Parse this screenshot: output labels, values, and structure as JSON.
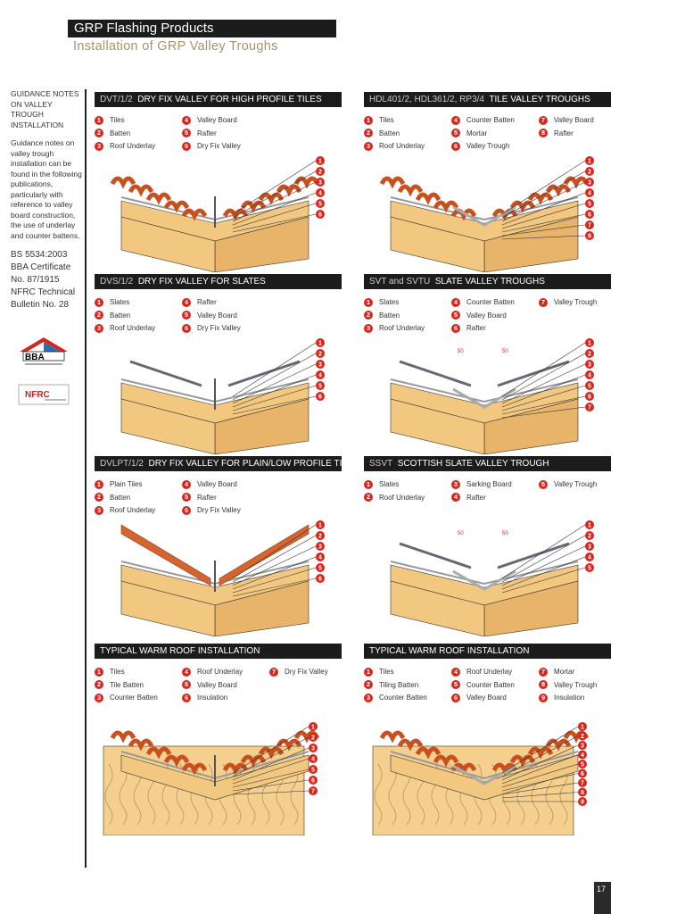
{
  "header": {
    "title": "GRP Flashing Products",
    "subtitle": "Installation of GRP Valley Troughs"
  },
  "sidebar": {
    "heading": "GUIDANCE NOTES ON VALLEY TROUGH INSTALLATION",
    "body": "Guidance notes on valley trough installation can be found in the following publications, particularly with reference to valley board construction, the use of underlay and counter battens.",
    "refs": [
      "BS 5534:2003",
      "BBA Certificate",
      "No. 87/1915",
      "NFRC Technical",
      "Bulletin No. 28"
    ],
    "logos": {
      "bba": "BBA",
      "nfrc": "NFRC"
    }
  },
  "panels": [
    {
      "code": "DVT/1/2",
      "title": "DRY FIX VALLEY FOR HIGH PROFILE TILES",
      "style": "tile",
      "items": [
        "Tiles",
        "Batten",
        "Roof Underlay",
        "Valley Board",
        "Rafter",
        "Dry Fix Valley"
      ]
    },
    {
      "code": "HDL401/2, HDL361/2, RP3/4",
      "title": "TILE VALLEY TROUGHS",
      "style": "trough",
      "items": [
        "Tiles",
        "Batten",
        "Roof Underlay",
        "Counter Batten",
        "Mortar",
        "Valley Trough",
        "Valley Board",
        "Rafter"
      ]
    },
    {
      "code": "DVS/1/2",
      "title": "DRY FIX VALLEY FOR SLATES",
      "style": "slate",
      "items": [
        "Slates",
        "Batten",
        "Roof Underlay",
        "Rafter",
        "Valley Board",
        "Dry Fix Valley"
      ]
    },
    {
      "code": "SVT and SVTU",
      "title": "SLATE VALLEY TROUGHS",
      "style": "slatetrough",
      "dim": "50",
      "items": [
        "Slates",
        "Batten",
        "Roof Underlay",
        "Counter Batten",
        "Valley Board",
        "Rafter",
        "Valley Trough"
      ]
    },
    {
      "code": "DVLPT/1/2",
      "title": "DRY FIX VALLEY FOR PLAIN/LOW PROFILE TILES",
      "style": "plain",
      "items": [
        "Plain Tiles",
        "Batten",
        "Roof Underlay",
        "Valley Board",
        "Rafter",
        "Dry Fix Valley"
      ]
    },
    {
      "code": "SSVT",
      "title": "SCOTTISH SLATE VALLEY TROUGH",
      "style": "slatetrough",
      "dim": "50",
      "items": [
        "Slates",
        "Roof Underlay",
        "Sarking Board",
        "Rafter",
        "Valley Trough"
      ]
    },
    {
      "code": "",
      "title": "TYPICAL WARM ROOF INSTALLATION",
      "style": "warm",
      "items": [
        "Tiles",
        "Tile Batten",
        "Counter Batten",
        "Roof Underlay",
        "Valley Board",
        "Insulation",
        "Dry Fix Valley"
      ]
    },
    {
      "code": "",
      "title": "TYPICAL WARM ROOF INSTALLATION",
      "style": "warmtrough",
      "items": [
        "Tiles",
        "Tiling Batten",
        "Counter Batten",
        "Roof Underlay",
        "Counter Batten",
        "Valley Board",
        "Mortar",
        "Valley Trough",
        "Insulation"
      ]
    }
  ],
  "page_number": "17",
  "colors": {
    "accent": "#d8261c",
    "tile": "#d5652e",
    "timber": "#f2c880",
    "header_bg": "#1c1c1c",
    "subtitle": "#a8936a"
  }
}
